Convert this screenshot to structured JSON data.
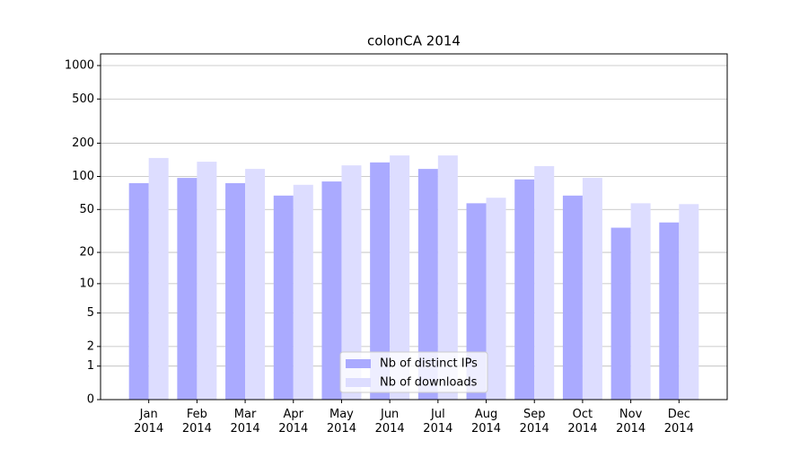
{
  "chart_data": {
    "type": "bar",
    "title": "colonCA 2014",
    "categories": [
      "Jan\n2014",
      "Feb\n2014",
      "Mar\n2014",
      "Apr\n2014",
      "May\n2014",
      "Jun\n2014",
      "Jul\n2014",
      "Aug\n2014",
      "Sep\n2014",
      "Oct\n2014",
      "Nov\n2014",
      "Dec\n2014"
    ],
    "series": [
      {
        "name": "Nb of distinct IPs",
        "color": "#aaaaff",
        "values": [
          87,
          97,
          87,
          67,
          90,
          134,
          117,
          57,
          94,
          67,
          34,
          38
        ]
      },
      {
        "name": "Nb of downloads",
        "color": "#ddddff",
        "values": [
          147,
          136,
          117,
          84,
          126,
          155,
          155,
          64,
          124,
          97,
          57,
          56
        ]
      }
    ],
    "yscale": "log1p",
    "ylim": [
      0,
      1273
    ],
    "yticks": [
      0,
      1,
      2,
      5,
      10,
      20,
      50,
      100,
      200,
      500,
      1000
    ],
    "grid": true,
    "legend": "lower center"
  }
}
